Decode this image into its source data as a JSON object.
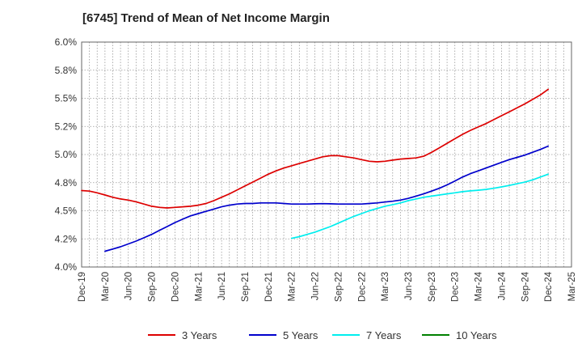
{
  "chart_data": {
    "type": "line",
    "title": "[6745]  Trend of Mean of Net Income Margin",
    "xlabel": "",
    "ylabel": "",
    "x_tick_labels": [
      "Dec-19",
      "Mar-20",
      "Jun-20",
      "Sep-20",
      "Dec-20",
      "Mar-21",
      "Jun-21",
      "Sep-21",
      "Dec-21",
      "Mar-22",
      "Jun-22",
      "Sep-22",
      "Dec-22",
      "Mar-23",
      "Jun-23",
      "Sep-23",
      "Dec-23",
      "Mar-24",
      "Jun-24",
      "Sep-24",
      "Dec-24",
      "Mar-25"
    ],
    "y_tick_labels": [
      "4.0%",
      "4.2%",
      "4.5%",
      "4.8%",
      "5.0%",
      "5.2%",
      "5.5%",
      "5.8%",
      "6.0%"
    ],
    "ylim": [
      4.0,
      6.0
    ],
    "grid": true,
    "legend_position": "bottom",
    "series": [
      {
        "name": "3 Years",
        "color": "#dd0000",
        "x": [
          "Dec-19",
          "Jan-20",
          "Feb-20",
          "Mar-20",
          "Apr-20",
          "May-20",
          "Jun-20",
          "Jul-20",
          "Aug-20",
          "Sep-20",
          "Oct-20",
          "Nov-20",
          "Dec-20",
          "Jan-21",
          "Feb-21",
          "Mar-21",
          "Apr-21",
          "May-21",
          "Jun-21",
          "Jul-21",
          "Aug-21",
          "Sep-21",
          "Oct-21",
          "Nov-21",
          "Dec-21",
          "Jan-22",
          "Feb-22",
          "Mar-22",
          "Apr-22",
          "May-22",
          "Jun-22",
          "Jul-22",
          "Aug-22",
          "Sep-22",
          "Oct-22",
          "Nov-22",
          "Dec-22",
          "Jan-23",
          "Feb-23",
          "Mar-23",
          "Apr-23",
          "May-23",
          "Jun-23",
          "Jul-23",
          "Aug-23",
          "Sep-23",
          "Oct-23",
          "Nov-23",
          "Dec-23",
          "Jan-24",
          "Feb-24",
          "Mar-24",
          "Apr-24",
          "May-24",
          "Jun-24",
          "Jul-24",
          "Aug-24",
          "Sep-24",
          "Oct-24",
          "Nov-24",
          "Dec-24"
        ],
        "values": [
          4.68,
          4.675,
          4.66,
          4.64,
          4.62,
          4.605,
          4.595,
          4.58,
          4.56,
          4.54,
          4.53,
          4.525,
          4.53,
          4.535,
          4.54,
          4.55,
          4.565,
          4.59,
          4.62,
          4.65,
          4.685,
          4.72,
          4.755,
          4.79,
          4.825,
          4.855,
          4.88,
          4.9,
          4.92,
          4.94,
          4.96,
          4.98,
          4.99,
          4.99,
          4.98,
          4.97,
          4.955,
          4.94,
          4.935,
          4.94,
          4.95,
          4.96,
          4.965,
          4.97,
          4.985,
          5.02,
          5.06,
          5.1,
          5.14,
          5.18,
          5.215,
          5.245,
          5.275,
          5.31,
          5.345,
          5.38,
          5.415,
          5.45,
          5.49,
          5.53,
          5.58
        ]
      },
      {
        "name": "5 Years",
        "color": "#0000cc",
        "x": [
          "Mar-20",
          "Apr-20",
          "May-20",
          "Jun-20",
          "Jul-20",
          "Aug-20",
          "Sep-20",
          "Oct-20",
          "Nov-20",
          "Dec-20",
          "Jan-21",
          "Feb-21",
          "Mar-21",
          "Apr-21",
          "May-21",
          "Jun-21",
          "Jul-21",
          "Aug-21",
          "Sep-21",
          "Oct-21",
          "Nov-21",
          "Dec-21",
          "Jan-22",
          "Feb-22",
          "Mar-22",
          "Apr-22",
          "May-22",
          "Jun-22",
          "Jul-22",
          "Aug-22",
          "Sep-22",
          "Oct-22",
          "Nov-22",
          "Dec-22",
          "Jan-23",
          "Feb-23",
          "Mar-23",
          "Apr-23",
          "May-23",
          "Jun-23",
          "Jul-23",
          "Aug-23",
          "Sep-23",
          "Oct-23",
          "Nov-23",
          "Dec-23",
          "Jan-24",
          "Feb-24",
          "Mar-24",
          "Apr-24",
          "May-24",
          "Jun-24",
          "Jul-24",
          "Aug-24",
          "Sep-24",
          "Oct-24",
          "Nov-24",
          "Dec-24"
        ],
        "values": [
          4.14,
          4.16,
          4.18,
          4.205,
          4.23,
          4.26,
          4.29,
          4.325,
          4.36,
          4.395,
          4.425,
          4.455,
          4.475,
          4.495,
          4.515,
          4.535,
          4.55,
          4.56,
          4.565,
          4.565,
          4.57,
          4.57,
          4.57,
          4.565,
          4.56,
          4.56,
          4.56,
          4.562,
          4.563,
          4.562,
          4.56,
          4.56,
          4.56,
          4.56,
          4.565,
          4.57,
          4.578,
          4.585,
          4.595,
          4.61,
          4.63,
          4.65,
          4.675,
          4.7,
          4.73,
          4.765,
          4.8,
          4.83,
          4.855,
          4.88,
          4.905,
          4.93,
          4.955,
          4.975,
          4.995,
          5.02,
          5.045,
          5.075
        ]
      },
      {
        "name": "7 Years",
        "color": "#00eeee",
        "x": [
          "Mar-22",
          "Apr-22",
          "May-22",
          "Jun-22",
          "Jul-22",
          "Aug-22",
          "Sep-22",
          "Oct-22",
          "Nov-22",
          "Dec-22",
          "Jan-23",
          "Feb-23",
          "Mar-23",
          "Apr-23",
          "May-23",
          "Jun-23",
          "Jul-23",
          "Aug-23",
          "Sep-23",
          "Oct-23",
          "Nov-23",
          "Dec-23",
          "Jan-24",
          "Feb-24",
          "Mar-24",
          "Apr-24",
          "May-24",
          "Jun-24",
          "Jul-24",
          "Aug-24",
          "Sep-24",
          "Oct-24",
          "Nov-24",
          "Dec-24"
        ],
        "values": [
          4.255,
          4.27,
          4.29,
          4.31,
          4.335,
          4.36,
          4.39,
          4.42,
          4.45,
          4.475,
          4.5,
          4.52,
          4.54,
          4.555,
          4.57,
          4.59,
          4.605,
          4.62,
          4.63,
          4.64,
          4.65,
          4.66,
          4.67,
          4.677,
          4.683,
          4.69,
          4.7,
          4.712,
          4.725,
          4.74,
          4.755,
          4.775,
          4.8,
          4.825
        ]
      },
      {
        "name": "10 Years",
        "color": "#008000",
        "x": [],
        "values": []
      }
    ]
  }
}
